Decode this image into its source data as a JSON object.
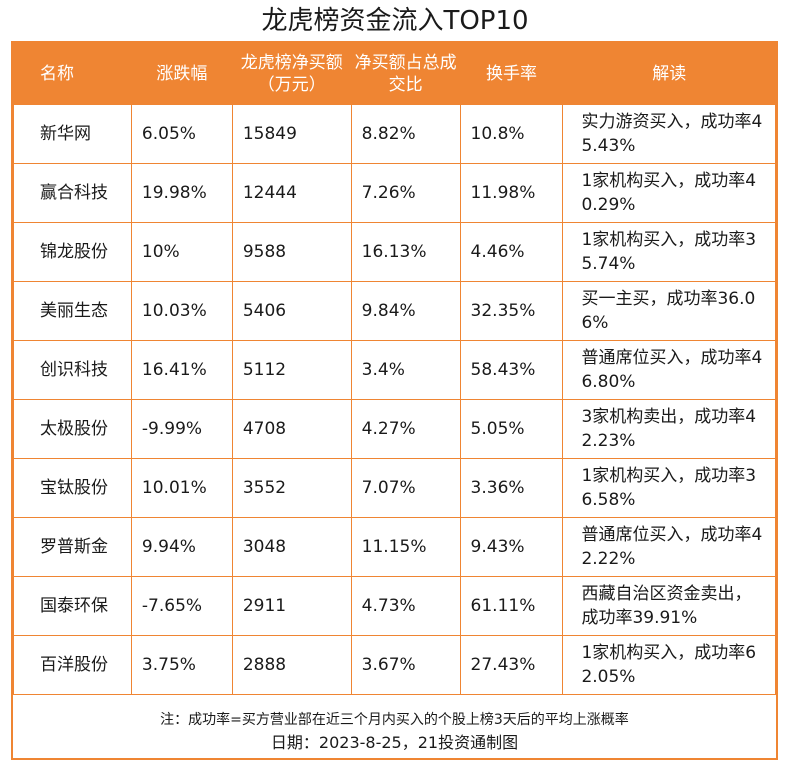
{
  "title": "龙虎榜资金流入TOP10",
  "colors": {
    "accent": "#ef8533",
    "header_text": "#ffffff"
  },
  "table": {
    "headers": [
      "名称",
      "涨跌幅",
      "龙虎榜净买额（万元）",
      "净买额占总成交比",
      "换手率",
      "解读"
    ],
    "rows": [
      [
        "新华网",
        "6.05%",
        "15849",
        "8.82%",
        "10.8%",
        "实力游资买入，成功率45.43%"
      ],
      [
        "赢合科技",
        "19.98%",
        "12444",
        "7.26%",
        "11.98%",
        "1家机构买入，成功率40.29%"
      ],
      [
        "锦龙股份",
        "10%",
        "9588",
        "16.13%",
        "4.46%",
        "1家机构买入，成功率35.74%"
      ],
      [
        "美丽生态",
        "10.03%",
        "5406",
        "9.84%",
        "32.35%",
        "买一主买，成功率36.06%"
      ],
      [
        "创识科技",
        "16.41%",
        "5112",
        "3.4%",
        "58.43%",
        "普通席位买入，成功率46.80%"
      ],
      [
        "太极股份",
        "-9.99%",
        "4708",
        "4.27%",
        "5.05%",
        "3家机构卖出，成功率42.23%"
      ],
      [
        "宝钛股份",
        "10.01%",
        "3552",
        "7.07%",
        "3.36%",
        "1家机构买入，成功率36.58%"
      ],
      [
        "罗普斯金",
        "9.94%",
        "3048",
        "11.15%",
        "9.43%",
        "普通席位买入，成功率42.22%"
      ],
      [
        "国泰环保",
        "-7.65%",
        "2911",
        "4.73%",
        "61.11%",
        "西藏自治区资金卖出，成功率39.91%"
      ],
      [
        "百洋股份",
        "3.75%",
        "2888",
        "3.67%",
        "27.43%",
        "1家机构买入，成功率62.05%"
      ]
    ]
  },
  "footer": {
    "note": "注：成功率=买方营业部在近三个月内买入的个股上榜3天后的平均上涨概率",
    "date": "日期：2023-8-25，21投资通制图"
  }
}
